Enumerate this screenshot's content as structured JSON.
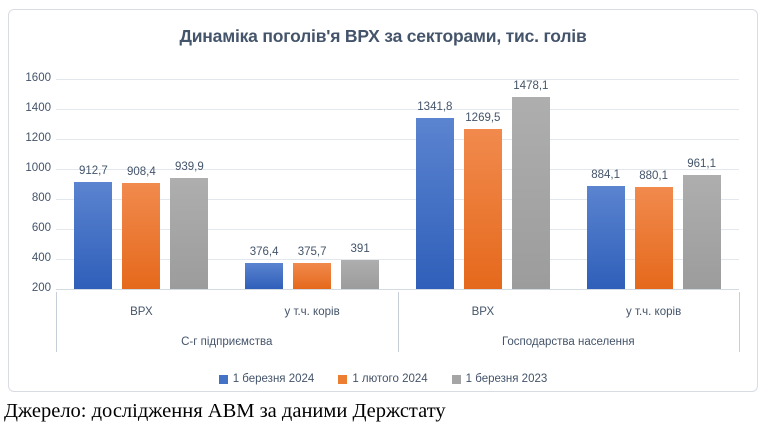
{
  "chart_data": {
    "type": "bar",
    "title": "Динаміка поголів'я ВРХ за секторами, тис. голів",
    "groups": [
      {
        "label": "С-г підприємства",
        "subcategories": [
          "ВРХ",
          "у т.ч. корів"
        ]
      },
      {
        "label": "Господарства населення",
        "subcategories": [
          "ВРХ",
          "у т.ч. корів"
        ]
      }
    ],
    "series": [
      {
        "name": "1 березня 2024",
        "color": "#4472C4",
        "values": [
          912.7,
          376.4,
          1341.8,
          884.1
        ]
      },
      {
        "name": "1 лютого 2024",
        "color": "#ED7D31",
        "values": [
          908.4,
          375.7,
          1269.5,
          880.1
        ]
      },
      {
        "name": "1 березня 2023",
        "color": "#A5A5A5",
        "values": [
          939.9,
          391,
          1478.1,
          961.1
        ]
      }
    ],
    "labels": [
      [
        "912,7",
        "908,4",
        "939,9"
      ],
      [
        "376,4",
        "375,7",
        "391"
      ],
      [
        "1341,8",
        "1269,5",
        "1478,1"
      ],
      [
        "884,1",
        "880,1",
        "961,1"
      ]
    ],
    "y_axis": {
      "min": 200,
      "max": 1600,
      "step": 200,
      "ticks": [
        "1600",
        "1400",
        "1200",
        "1000",
        "800",
        "600",
        "400",
        "200"
      ]
    },
    "grid": true,
    "legend_position": "bottom",
    "text_color": "#44546A"
  },
  "source": "Джерело: дослідження АВМ за даними Держстату"
}
